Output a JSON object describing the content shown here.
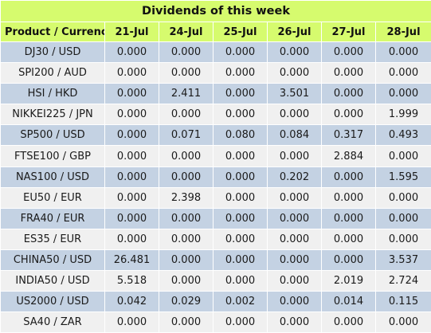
{
  "title": "Dividends of this week",
  "header": {
    "product": "Product / Currency",
    "days": [
      "21-Jul",
      "24-Jul",
      "25-Jul",
      "26-Jul",
      "27-Jul",
      "28-Jul"
    ]
  },
  "rows": [
    {
      "product": "DJ30 / USD",
      "values": [
        "0.000",
        "0.000",
        "0.000",
        "0.000",
        "0.000",
        "0.000"
      ]
    },
    {
      "product": "SPI200 / AUD",
      "values": [
        "0.000",
        "0.000",
        "0.000",
        "0.000",
        "0.000",
        "0.000"
      ]
    },
    {
      "product": "HSI / HKD",
      "values": [
        "0.000",
        "2.411",
        "0.000",
        "3.501",
        "0.000",
        "0.000"
      ]
    },
    {
      "product": "NIKKEI225 / JPN",
      "values": [
        "0.000",
        "0.000",
        "0.000",
        "0.000",
        "0.000",
        "1.999"
      ]
    },
    {
      "product": "SP500 / USD",
      "values": [
        "0.000",
        "0.071",
        "0.080",
        "0.084",
        "0.317",
        "0.493"
      ]
    },
    {
      "product": "FTSE100 / GBP",
      "values": [
        "0.000",
        "0.000",
        "0.000",
        "0.000",
        "2.884",
        "0.000"
      ]
    },
    {
      "product": "NAS100 / USD",
      "values": [
        "0.000",
        "0.000",
        "0.000",
        "0.202",
        "0.000",
        "1.595"
      ]
    },
    {
      "product": "EU50 / EUR",
      "values": [
        "0.000",
        "2.398",
        "0.000",
        "0.000",
        "0.000",
        "0.000"
      ]
    },
    {
      "product": "FRA40 / EUR",
      "values": [
        "0.000",
        "0.000",
        "0.000",
        "0.000",
        "0.000",
        "0.000"
      ]
    },
    {
      "product": "ES35 / EUR",
      "values": [
        "0.000",
        "0.000",
        "0.000",
        "0.000",
        "0.000",
        "0.000"
      ]
    },
    {
      "product": "CHINA50 / USD",
      "values": [
        "26.481",
        "0.000",
        "0.000",
        "0.000",
        "0.000",
        "3.537"
      ]
    },
    {
      "product": "INDIA50 / USD",
      "values": [
        "5.518",
        "0.000",
        "0.000",
        "0.000",
        "2.019",
        "2.724"
      ]
    },
    {
      "product": "US2000 / USD",
      "values": [
        "0.042",
        "0.029",
        "0.002",
        "0.000",
        "0.014",
        "0.115"
      ]
    },
    {
      "product": "SA40 / ZAR",
      "values": [
        "0.000",
        "0.000",
        "0.000",
        "0.000",
        "0.000",
        "0.000"
      ]
    }
  ],
  "colors": {
    "header_bg": "#d6fb6e",
    "row_odd_bg": "#c4d2e3",
    "row_even_bg": "#f0f0f0"
  }
}
